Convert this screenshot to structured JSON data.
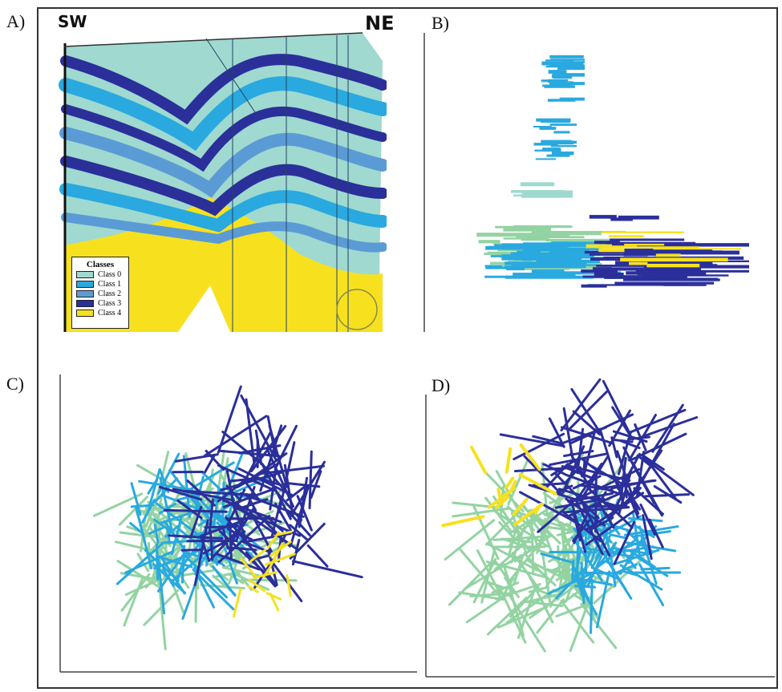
{
  "panels": {
    "a": {
      "letter": "A)",
      "left_label": "SW",
      "right_label": "NE"
    },
    "b": {
      "letter": "B)"
    },
    "c": {
      "letter": "C)"
    },
    "d": {
      "letter": "D)"
    }
  },
  "legend": {
    "title": "Classes",
    "items": [
      {
        "label": "Class 0",
        "color": "#9fd9d0"
      },
      {
        "label": "Class 1",
        "color": "#29a9df"
      },
      {
        "label": "Class 2",
        "color": "#5b9bd5"
      },
      {
        "label": "Class 3",
        "color": "#2b2f9a"
      },
      {
        "label": "Class 4",
        "color": "#f7e11f"
      }
    ]
  },
  "colors": {
    "class0": "#9fd9d0",
    "class1": "#29a9df",
    "class2": "#5b9bd5",
    "class3": "#2b2f9a",
    "class4": "#f7e11f",
    "scatter_green": "#93d3a2"
  }
}
